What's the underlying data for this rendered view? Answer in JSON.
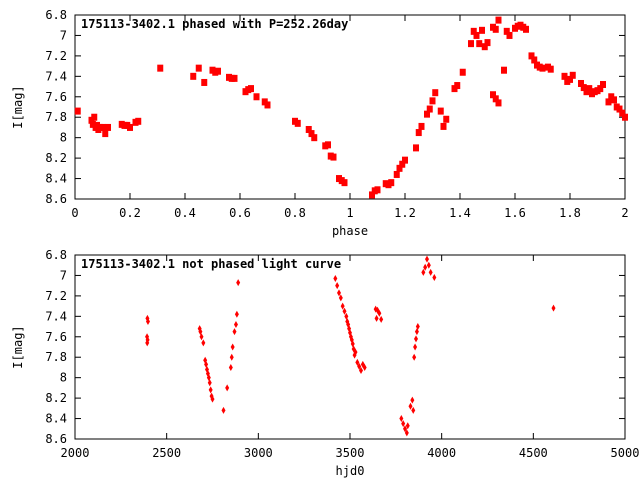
{
  "chart_data": [
    {
      "type": "scatter",
      "title": "175113-3402.1 phased with P=252.26day",
      "xlabel": "phase",
      "ylabel": "I[mag]",
      "xlim": [
        0,
        2
      ],
      "ylim": [
        6.8,
        8.6
      ],
      "y_inverted": true,
      "grid": false,
      "marker_color": "#ff0000",
      "marker": "square",
      "xticks": [
        0,
        0.2,
        0.4,
        0.6,
        0.8,
        1,
        1.2,
        1.4,
        1.6,
        1.8,
        2
      ],
      "xtick_labels": [
        "0",
        "0.2",
        "0.4",
        "0.6",
        "0.8",
        "1",
        "1.2",
        "1.4",
        "1.6",
        "1.8",
        "2"
      ],
      "yticks": [
        6.8,
        7,
        7.2,
        7.4,
        7.6,
        7.8,
        8,
        8.2,
        8.4,
        8.6
      ],
      "ytick_labels": [
        "6.8",
        "7",
        "7.2",
        "7.4",
        "7.6",
        "7.8",
        "8",
        "8.2",
        "8.4",
        "8.6"
      ],
      "points": [
        [
          0.01,
          7.74
        ],
        [
          0.06,
          7.83
        ],
        [
          0.065,
          7.87
        ],
        [
          0.07,
          7.8
        ],
        [
          0.075,
          7.9
        ],
        [
          0.08,
          7.88
        ],
        [
          0.085,
          7.92
        ],
        [
          0.09,
          7.9
        ],
        [
          0.1,
          7.9
        ],
        [
          0.11,
          7.96
        ],
        [
          0.12,
          7.9
        ],
        [
          0.17,
          7.87
        ],
        [
          0.18,
          7.88
        ],
        [
          0.19,
          7.88
        ],
        [
          0.2,
          7.9
        ],
        [
          0.22,
          7.85
        ],
        [
          0.23,
          7.84
        ],
        [
          0.31,
          7.32
        ],
        [
          0.43,
          7.4
        ],
        [
          0.45,
          7.32
        ],
        [
          0.47,
          7.46
        ],
        [
          0.5,
          7.34
        ],
        [
          0.51,
          7.36
        ],
        [
          0.52,
          7.35
        ],
        [
          0.56,
          7.41
        ],
        [
          0.57,
          7.42
        ],
        [
          0.58,
          7.42
        ],
        [
          0.62,
          7.55
        ],
        [
          0.63,
          7.53
        ],
        [
          0.64,
          7.52
        ],
        [
          0.66,
          7.6
        ],
        [
          0.69,
          7.65
        ],
        [
          0.7,
          7.68
        ],
        [
          0.8,
          7.84
        ],
        [
          0.81,
          7.86
        ],
        [
          0.85,
          7.92
        ],
        [
          0.86,
          7.96
        ],
        [
          0.87,
          8.0
        ],
        [
          0.91,
          8.08
        ],
        [
          0.92,
          8.07
        ],
        [
          0.93,
          8.18
        ],
        [
          0.94,
          8.19
        ],
        [
          0.96,
          8.4
        ],
        [
          0.97,
          8.42
        ],
        [
          0.98,
          8.44
        ],
        [
          1.08,
          8.56
        ],
        [
          1.09,
          8.52
        ],
        [
          1.1,
          8.51
        ],
        [
          1.13,
          8.45
        ],
        [
          1.14,
          8.46
        ],
        [
          1.15,
          8.44
        ],
        [
          1.17,
          8.36
        ],
        [
          1.18,
          8.3
        ],
        [
          1.19,
          8.26
        ],
        [
          1.2,
          8.22
        ],
        [
          1.24,
          8.1
        ],
        [
          1.25,
          7.95
        ],
        [
          1.26,
          7.89
        ],
        [
          1.28,
          7.77
        ],
        [
          1.29,
          7.72
        ],
        [
          1.3,
          7.64
        ],
        [
          1.31,
          7.56
        ],
        [
          1.33,
          7.74
        ],
        [
          1.34,
          7.89
        ],
        [
          1.35,
          7.82
        ],
        [
          1.38,
          7.52
        ],
        [
          1.39,
          7.49
        ],
        [
          1.41,
          7.36
        ],
        [
          1.44,
          7.08
        ],
        [
          1.45,
          6.96
        ],
        [
          1.46,
          7.0
        ],
        [
          1.47,
          7.08
        ],
        [
          1.48,
          6.95
        ],
        [
          1.49,
          7.11
        ],
        [
          1.5,
          7.07
        ],
        [
          1.52,
          6.92
        ],
        [
          1.53,
          6.94
        ],
        [
          1.54,
          6.85
        ],
        [
          1.52,
          7.58
        ],
        [
          1.53,
          7.62
        ],
        [
          1.54,
          7.66
        ],
        [
          1.56,
          7.34
        ],
        [
          1.57,
          6.96
        ],
        [
          1.58,
          7.0
        ],
        [
          1.6,
          6.93
        ],
        [
          1.61,
          6.91
        ],
        [
          1.62,
          6.9
        ],
        [
          1.63,
          6.92
        ],
        [
          1.64,
          6.94
        ],
        [
          1.66,
          7.2
        ],
        [
          1.67,
          7.24
        ],
        [
          1.68,
          7.29
        ],
        [
          1.69,
          7.31
        ],
        [
          1.7,
          7.32
        ],
        [
          1.72,
          7.31
        ],
        [
          1.73,
          7.33
        ],
        [
          1.78,
          7.4
        ],
        [
          1.79,
          7.45
        ],
        [
          1.8,
          7.43
        ],
        [
          1.81,
          7.39
        ],
        [
          1.84,
          7.47
        ],
        [
          1.85,
          7.51
        ],
        [
          1.86,
          7.55
        ],
        [
          1.87,
          7.52
        ],
        [
          1.88,
          7.57
        ],
        [
          1.89,
          7.55
        ],
        [
          1.9,
          7.54
        ],
        [
          1.91,
          7.52
        ],
        [
          1.92,
          7.48
        ],
        [
          1.94,
          7.65
        ],
        [
          1.95,
          7.6
        ],
        [
          1.96,
          7.63
        ],
        [
          1.97,
          7.7
        ],
        [
          1.98,
          7.72
        ],
        [
          1.99,
          7.76
        ],
        [
          2.0,
          7.8
        ]
      ]
    },
    {
      "type": "scatter",
      "title": "175113-3402.1 not phased light curve",
      "xlabel": "hjd0",
      "ylabel": "I[mag]",
      "xlim": [
        2000,
        5000
      ],
      "ylim": [
        6.8,
        8.6
      ],
      "y_inverted": true,
      "grid": false,
      "marker_color": "#ff0000",
      "marker": "diamond",
      "xticks": [
        2000,
        2500,
        3000,
        3500,
        4000,
        4500,
        5000
      ],
      "xtick_labels": [
        "2000",
        "2500",
        "3000",
        "3500",
        "4000",
        "4500",
        "5000"
      ],
      "yticks": [
        6.8,
        7,
        7.2,
        7.4,
        7.6,
        7.8,
        8,
        8.2,
        8.4,
        8.6
      ],
      "ytick_labels": [
        "6.8",
        "7",
        "7.2",
        "7.4",
        "7.6",
        "7.8",
        "8",
        "8.2",
        "8.4",
        "8.6"
      ],
      "points": [
        [
          2395,
          7.42
        ],
        [
          2398,
          7.45
        ],
        [
          2393,
          7.6
        ],
        [
          2396,
          7.63
        ],
        [
          2394,
          7.66
        ],
        [
          2680,
          7.52
        ],
        [
          2684,
          7.55
        ],
        [
          2690,
          7.6
        ],
        [
          2700,
          7.66
        ],
        [
          2710,
          7.83
        ],
        [
          2715,
          7.87
        ],
        [
          2720,
          7.92
        ],
        [
          2725,
          7.96
        ],
        [
          2730,
          8.0
        ],
        [
          2735,
          8.05
        ],
        [
          2740,
          8.12
        ],
        [
          2745,
          8.18
        ],
        [
          2750,
          8.21
        ],
        [
          2810,
          8.32
        ],
        [
          2830,
          8.1
        ],
        [
          2850,
          7.9
        ],
        [
          2855,
          7.8
        ],
        [
          2860,
          7.7
        ],
        [
          2870,
          7.55
        ],
        [
          2878,
          7.48
        ],
        [
          2883,
          7.38
        ],
        [
          2890,
          7.07
        ],
        [
          3420,
          7.03
        ],
        [
          3430,
          7.1
        ],
        [
          3440,
          7.17
        ],
        [
          3450,
          7.22
        ],
        [
          3460,
          7.3
        ],
        [
          3470,
          7.35
        ],
        [
          3480,
          7.4
        ],
        [
          3485,
          7.45
        ],
        [
          3490,
          7.48
        ],
        [
          3495,
          7.52
        ],
        [
          3500,
          7.56
        ],
        [
          3505,
          7.6
        ],
        [
          3510,
          7.63
        ],
        [
          3515,
          7.67
        ],
        [
          3520,
          7.72
        ],
        [
          3525,
          7.78
        ],
        [
          3530,
          7.75
        ],
        [
          3540,
          7.85
        ],
        [
          3550,
          7.89
        ],
        [
          3560,
          7.93
        ],
        [
          3570,
          7.87
        ],
        [
          3580,
          7.9
        ],
        [
          3640,
          7.33
        ],
        [
          3645,
          7.42
        ],
        [
          3650,
          7.34
        ],
        [
          3660,
          7.37
        ],
        [
          3670,
          7.43
        ],
        [
          3780,
          8.4
        ],
        [
          3790,
          8.45
        ],
        [
          3800,
          8.5
        ],
        [
          3810,
          8.54
        ],
        [
          3815,
          8.47
        ],
        [
          3830,
          8.28
        ],
        [
          3840,
          8.22
        ],
        [
          3845,
          8.32
        ],
        [
          3850,
          7.8
        ],
        [
          3855,
          7.7
        ],
        [
          3860,
          7.62
        ],
        [
          3865,
          7.55
        ],
        [
          3870,
          7.5
        ],
        [
          3900,
          6.97
        ],
        [
          3910,
          6.92
        ],
        [
          3920,
          6.84
        ],
        [
          3930,
          6.9
        ],
        [
          3940,
          6.97
        ],
        [
          3960,
          7.02
        ],
        [
          4610,
          7.32
        ]
      ]
    }
  ]
}
